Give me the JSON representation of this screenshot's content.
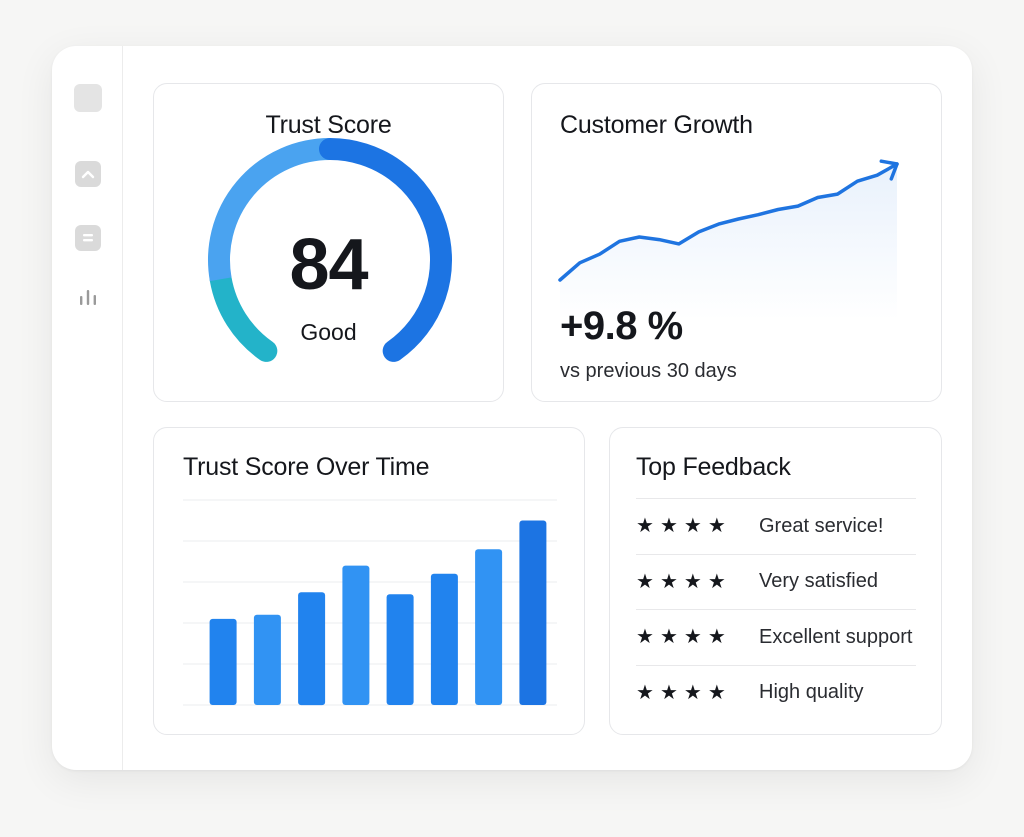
{
  "sidebar": {
    "items": [
      {
        "icon": "home-square-icon"
      },
      {
        "icon": "chevron-up-icon"
      },
      {
        "icon": "document-icon"
      },
      {
        "icon": "bar-chart-icon"
      }
    ]
  },
  "trust_score": {
    "title": "Trust Score",
    "value": "84",
    "label": "Good",
    "gauge_level": 0.84,
    "colors": {
      "teal": "#23b3c9",
      "light_blue": "#4aa3f0",
      "blue": "#1c74e3"
    }
  },
  "customer_growth": {
    "title": "Customer Growth",
    "value": "+9.8 %",
    "subtitle": "vs previous 30 days",
    "trend": [
      0,
      2,
      3,
      4.5,
      5,
      4.7,
      4.2,
      5.6,
      6.5,
      7.1,
      7.6,
      8.2,
      8.6,
      9.6,
      10,
      11.5,
      12.2,
      13.5
    ],
    "line_color": "#1f74e0"
  },
  "trust_over_time": {
    "title": "Trust Score Over Time"
  },
  "chart_data": {
    "type": "bar",
    "categories": [
      "",
      "",
      "",
      "",
      "",
      "",
      "",
      ""
    ],
    "values": [
      42,
      44,
      55,
      68,
      54,
      64,
      76,
      90
    ],
    "ylim": [
      0,
      100
    ],
    "grid": true,
    "colors": [
      "#2183ee",
      "#3193f3",
      "#2183ee",
      "#3193f3",
      "#2183ee",
      "#2183ee",
      "#3193f3",
      "#1c74e3"
    ]
  },
  "top_feedback": {
    "title": "Top Feedback",
    "items": [
      {
        "stars": 4,
        "text": "Great service!"
      },
      {
        "stars": 4,
        "text": "Very satisfied"
      },
      {
        "stars": 4,
        "text": "Excellent support"
      },
      {
        "stars": 4,
        "text": "High quality"
      }
    ]
  }
}
